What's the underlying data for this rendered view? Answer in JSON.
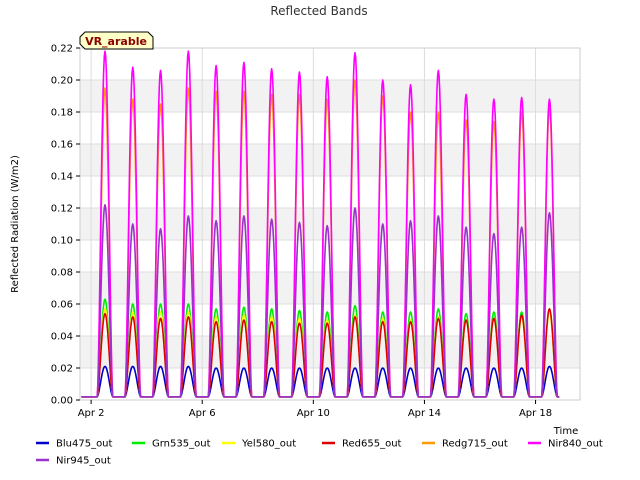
{
  "chart_data": {
    "type": "line",
    "title": "Reflected Bands",
    "xlabel": "Time",
    "ylabel": "Reflected Radiation (W/m2)",
    "site_label": "VR_arable",
    "xlim": [
      1.6,
      19.6
    ],
    "ylim": [
      0.0,
      0.22
    ],
    "grid": true,
    "legend_position": "bottom",
    "x_ticks": [
      {
        "value": 2,
        "label": "Apr 2"
      },
      {
        "value": 6,
        "label": "Apr 6"
      },
      {
        "value": 10,
        "label": "Apr 10"
      },
      {
        "value": 14,
        "label": "Apr 14"
      },
      {
        "value": 18,
        "label": "Apr 18"
      }
    ],
    "y_ticks": [
      0.0,
      0.02,
      0.04,
      0.06,
      0.08,
      0.1,
      0.12,
      0.14,
      0.16,
      0.18,
      0.2,
      0.22
    ],
    "x_days": [
      2.5,
      3.5,
      4.5,
      5.5,
      6.5,
      7.5,
      8.5,
      9.5,
      10.5,
      11.5,
      12.5,
      13.5,
      14.5,
      15.5,
      16.5,
      17.5,
      18.5
    ],
    "series": [
      {
        "name": "Blu475_out",
        "color": "#0000cc",
        "y": [
          0.021,
          0.021,
          0.021,
          0.021,
          0.02,
          0.02,
          0.02,
          0.02,
          0.02,
          0.02,
          0.02,
          0.02,
          0.02,
          0.02,
          0.02,
          0.02,
          0.021
        ]
      },
      {
        "name": "Grn535_out",
        "color": "#00ee00",
        "y": [
          0.063,
          0.06,
          0.06,
          0.06,
          0.057,
          0.058,
          0.057,
          0.056,
          0.055,
          0.059,
          0.055,
          0.055,
          0.057,
          0.054,
          0.055,
          0.055,
          0.056
        ]
      },
      {
        "name": "Yel580_out",
        "color": "#ffff00",
        "y": [
          0.057,
          0.055,
          0.055,
          0.055,
          0.052,
          0.053,
          0.052,
          0.051,
          0.05,
          0.053,
          0.051,
          0.05,
          0.052,
          0.05,
          0.051,
          0.052,
          0.055
        ]
      },
      {
        "name": "Red655_out",
        "color": "#dd0000",
        "y": [
          0.054,
          0.052,
          0.051,
          0.052,
          0.049,
          0.05,
          0.049,
          0.048,
          0.048,
          0.052,
          0.049,
          0.049,
          0.051,
          0.05,
          0.051,
          0.053,
          0.057
        ]
      },
      {
        "name": "Redg715_out",
        "color": "#ff9900",
        "y": [
          0.195,
          0.188,
          0.185,
          0.195,
          0.193,
          0.193,
          0.191,
          0.191,
          0.188,
          0.2,
          0.19,
          0.18,
          0.18,
          0.175,
          0.174,
          0.18,
          0.182
        ]
      },
      {
        "name": "Nir840_out",
        "color": "#ff00ff",
        "y": [
          0.218,
          0.208,
          0.206,
          0.218,
          0.209,
          0.211,
          0.207,
          0.205,
          0.202,
          0.217,
          0.2,
          0.197,
          0.206,
          0.191,
          0.188,
          0.189,
          0.188
        ]
      },
      {
        "name": "Nir945_out",
        "color": "#9933cc",
        "y": [
          0.122,
          0.11,
          0.107,
          0.115,
          0.112,
          0.115,
          0.113,
          0.111,
          0.109,
          0.12,
          0.11,
          0.112,
          0.115,
          0.108,
          0.104,
          0.108,
          0.117
        ]
      }
    ]
  }
}
